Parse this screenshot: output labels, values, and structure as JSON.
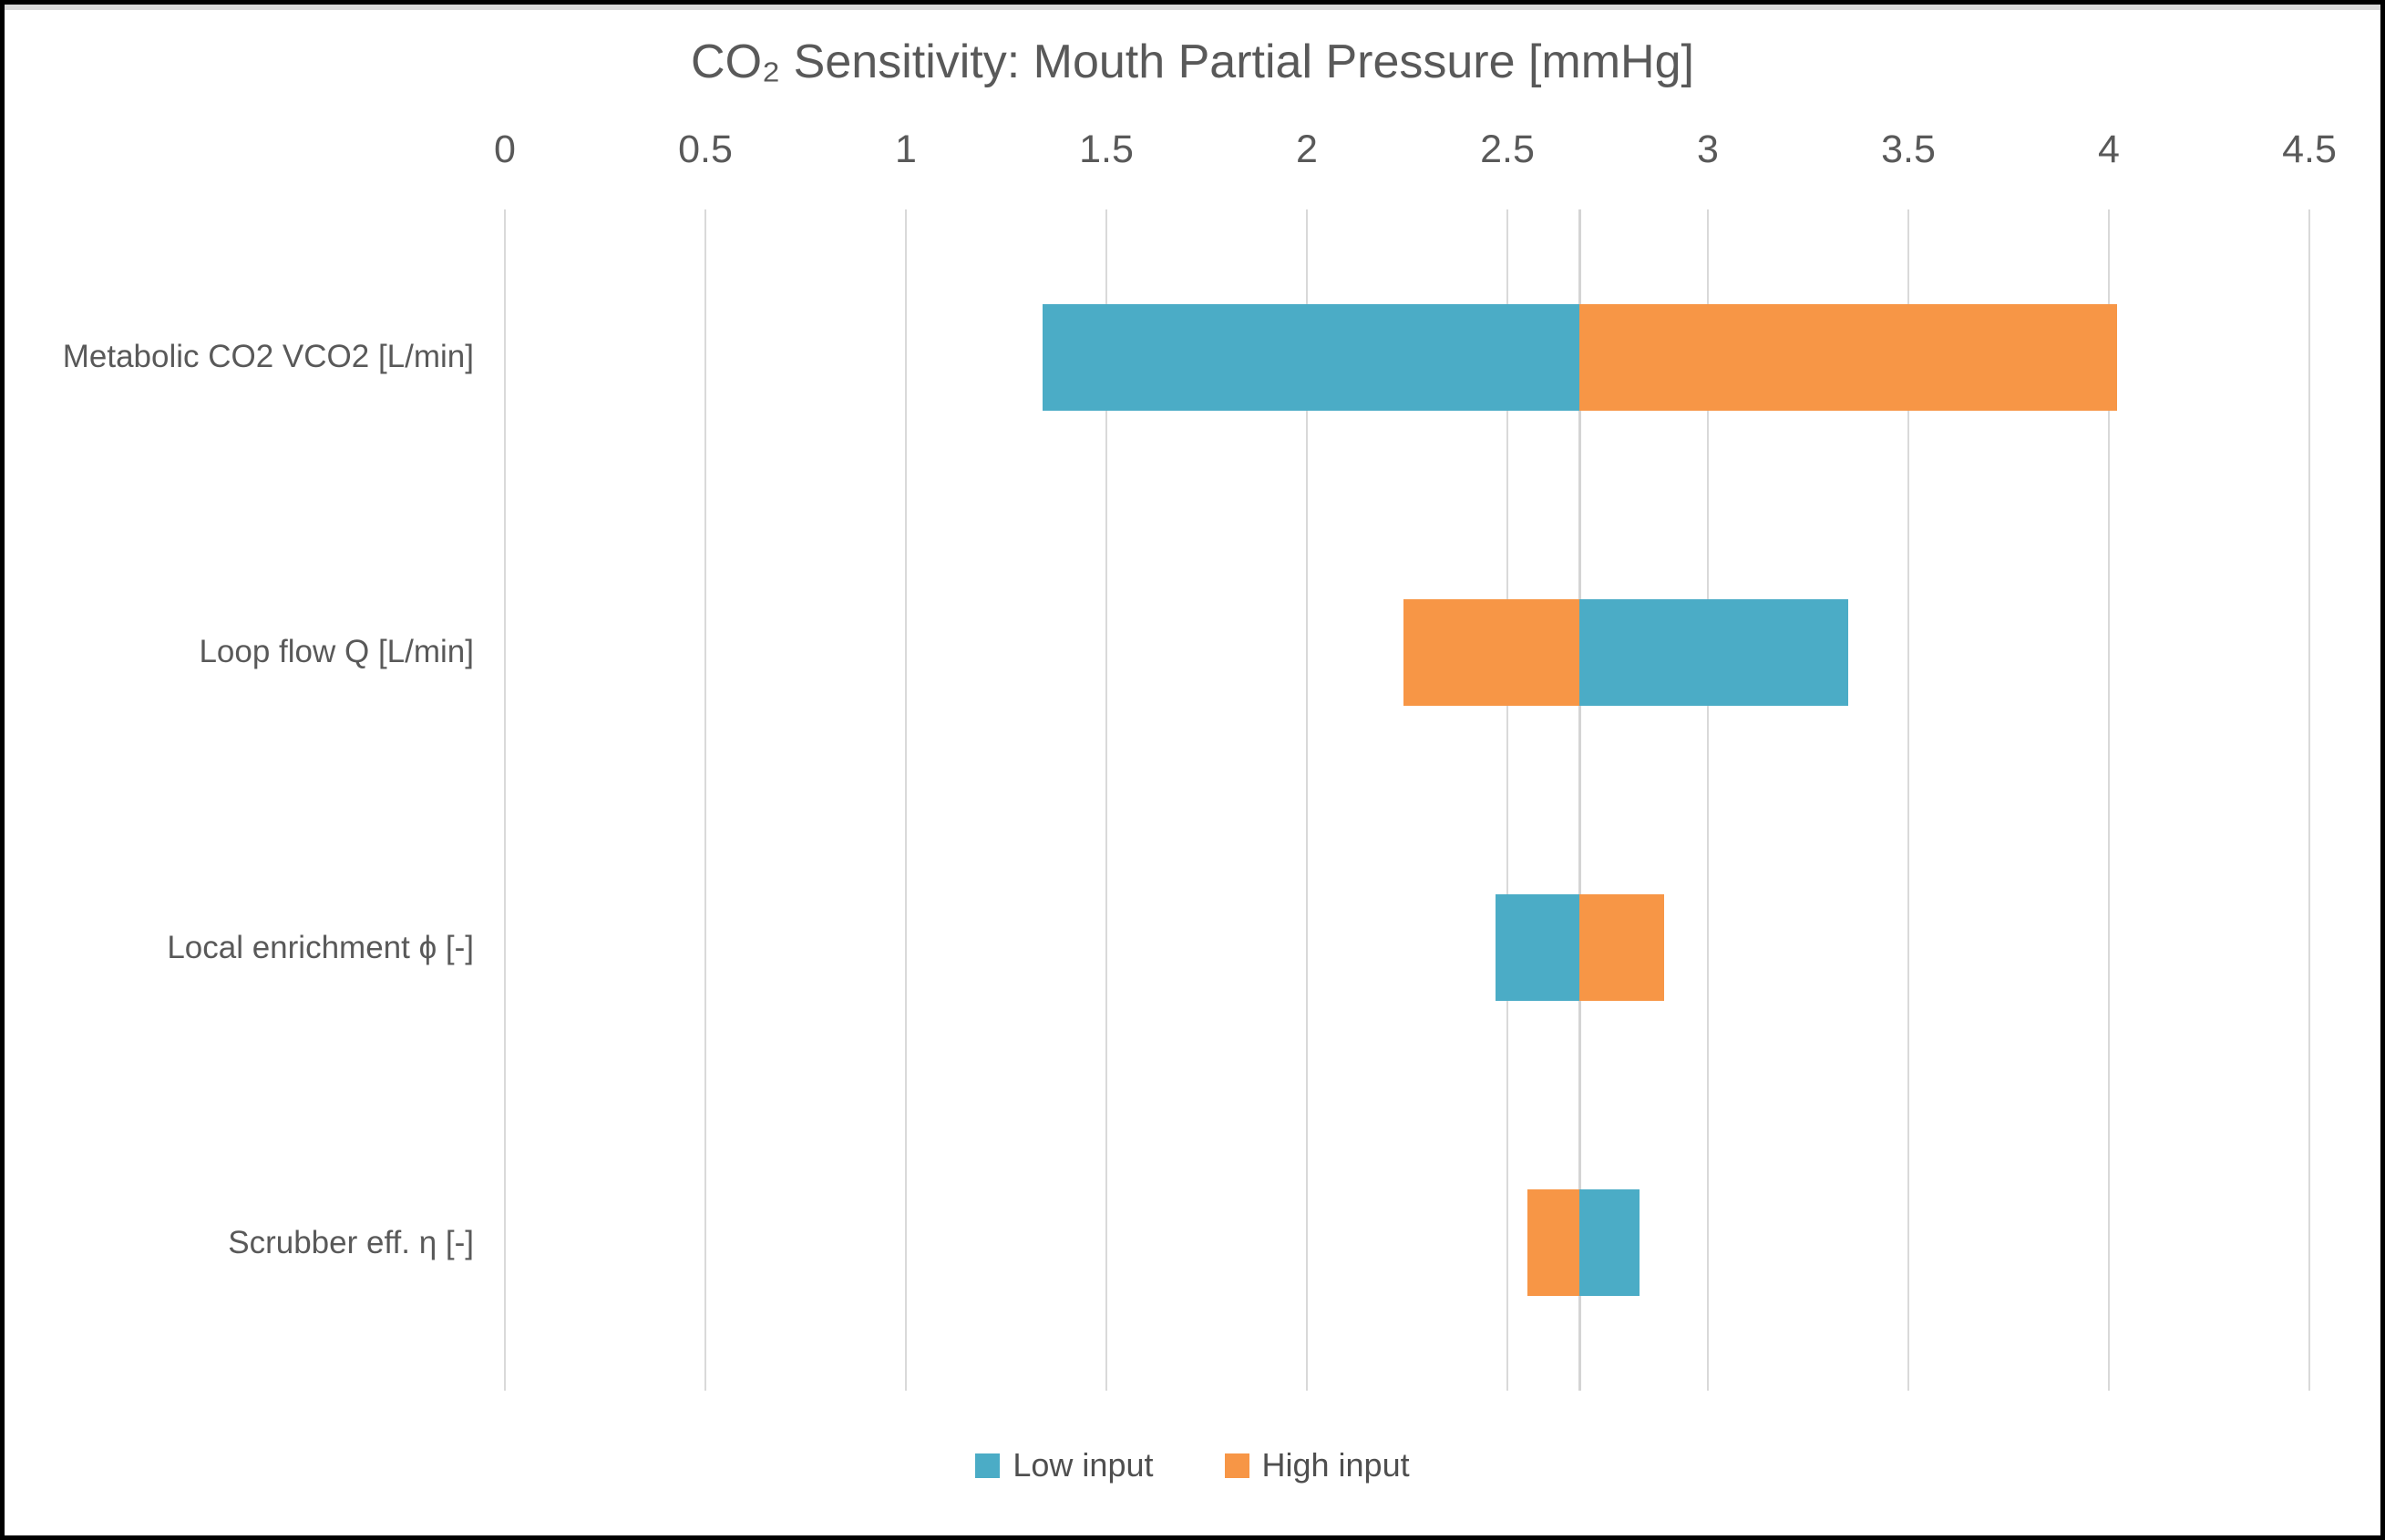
{
  "window": {
    "frame_color": "#000000",
    "top_strip_color": "#d9d9d9",
    "background": "#ffffff"
  },
  "chart_data": {
    "type": "bar",
    "subtype": "tornado-horizontal",
    "title": "CO₂ Sensitivity: Mouth Partial Pressure [mmHg]",
    "xlabel": "",
    "ylabel": "",
    "x_axis": {
      "min": 0,
      "max": 4.5,
      "tick_step": 0.5,
      "ticks": [
        0,
        0.5,
        1,
        1.5,
        2,
        2.5,
        3,
        3.5,
        4,
        4.5
      ],
      "grid": true
    },
    "base_value": 2.68,
    "categories": [
      "Metabolic CO2 VCO2 [L/min]",
      "Loop flow Q [L/min]",
      "Local enrichment ϕ [-]",
      "Scrubber eff. η [-]"
    ],
    "series": [
      {
        "name": "Low input",
        "color": "#4BACC6",
        "values": [
          1.34,
          3.35,
          2.47,
          2.83
        ]
      },
      {
        "name": "High input",
        "color": "#F79646",
        "values": [
          4.02,
          2.24,
          2.89,
          2.55
        ]
      }
    ],
    "legend_position": "bottom",
    "colors": {
      "gridline": "#D9D9D9",
      "pivot_axis_line": "#D4D4D4",
      "title_text": "#595959",
      "axis_text": "#595959",
      "legend_text": "#4f4f4f"
    }
  }
}
